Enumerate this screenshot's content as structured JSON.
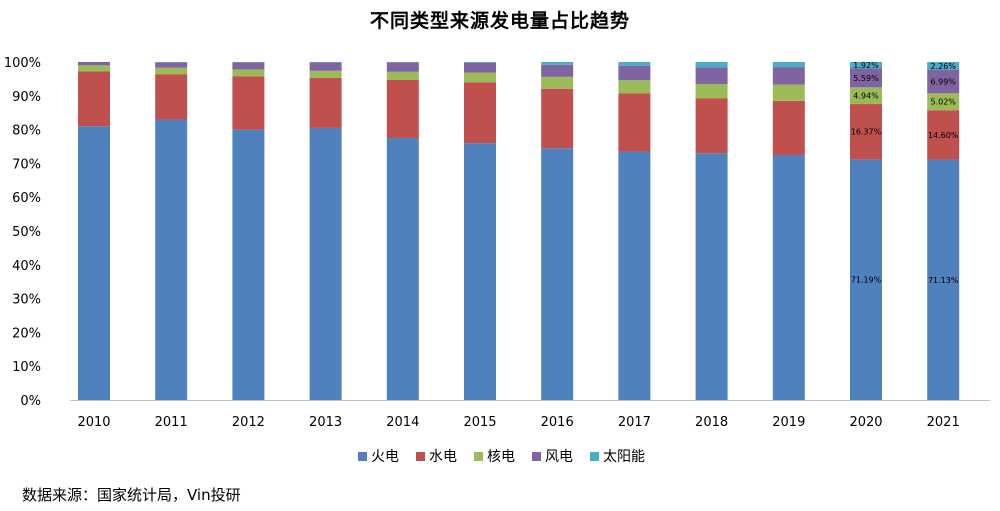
{
  "title": "不同类型来源发电量占比趋势",
  "source_note": "数据来源：国家统计局，Vin投研",
  "chart_data": {
    "type": "bar",
    "stacked": true,
    "percent": true,
    "title": "不同类型来源发电量占比趋势",
    "categories": [
      "2010",
      "2011",
      "2012",
      "2013",
      "2014",
      "2015",
      "2016",
      "2017",
      "2018",
      "2019",
      "2020",
      "2021"
    ],
    "ylim": [
      0,
      100
    ],
    "y_ticks": [
      "0%",
      "10%",
      "20%",
      "30%",
      "40%",
      "50%",
      "60%",
      "70%",
      "80%",
      "90%",
      "100%"
    ],
    "grid": false,
    "legend_position": "bottom",
    "series": [
      {
        "name": "火电",
        "color": "#4f81bd",
        "values": [
          81.0,
          83.0,
          80.0,
          80.5,
          77.5,
          76.0,
          74.5,
          73.5,
          73.0,
          72.5,
          71.19,
          71.13
        ],
        "labels": [
          "",
          "",
          "",
          "",
          "",
          "",
          "",
          "",
          "",
          "",
          "71.19%",
          "71.13%"
        ]
      },
      {
        "name": "水电",
        "color": "#c0504d",
        "values": [
          16.2,
          13.4,
          15.8,
          14.8,
          17.2,
          18.0,
          17.6,
          17.2,
          16.3,
          16.0,
          16.37,
          14.6
        ],
        "labels": [
          "",
          "",
          "",
          "",
          "",
          "",
          "",
          "",
          "",
          "",
          "16.37%",
          "14.60%"
        ]
      },
      {
        "name": "核电",
        "color": "#9bbb59",
        "values": [
          1.8,
          1.9,
          2.0,
          2.1,
          2.4,
          2.9,
          3.5,
          3.9,
          4.2,
          4.8,
          4.94,
          5.02
        ],
        "labels": [
          "",
          "",
          "",
          "",
          "",
          "",
          "",
          "",
          "",
          "",
          "4.94%",
          "5.02%"
        ]
      },
      {
        "name": "风电",
        "color": "#8064a2",
        "values": [
          1.0,
          1.6,
          2.1,
          2.5,
          2.8,
          2.9,
          3.6,
          4.3,
          4.9,
          5.2,
          5.59,
          6.99
        ],
        "labels": [
          "",
          "",
          "",
          "",
          "",
          "",
          "",
          "",
          "",
          "",
          "5.59%",
          "6.99%"
        ]
      },
      {
        "name": "太阳能",
        "color": "#4bacc6",
        "values": [
          0.0,
          0.1,
          0.1,
          0.1,
          0.1,
          0.2,
          0.8,
          1.1,
          1.6,
          1.5,
          1.92,
          2.26
        ],
        "labels": [
          "",
          "",
          "",
          "",
          "",
          "",
          "",
          "",
          "",
          "",
          "1.92%",
          "2.26%"
        ]
      }
    ]
  }
}
